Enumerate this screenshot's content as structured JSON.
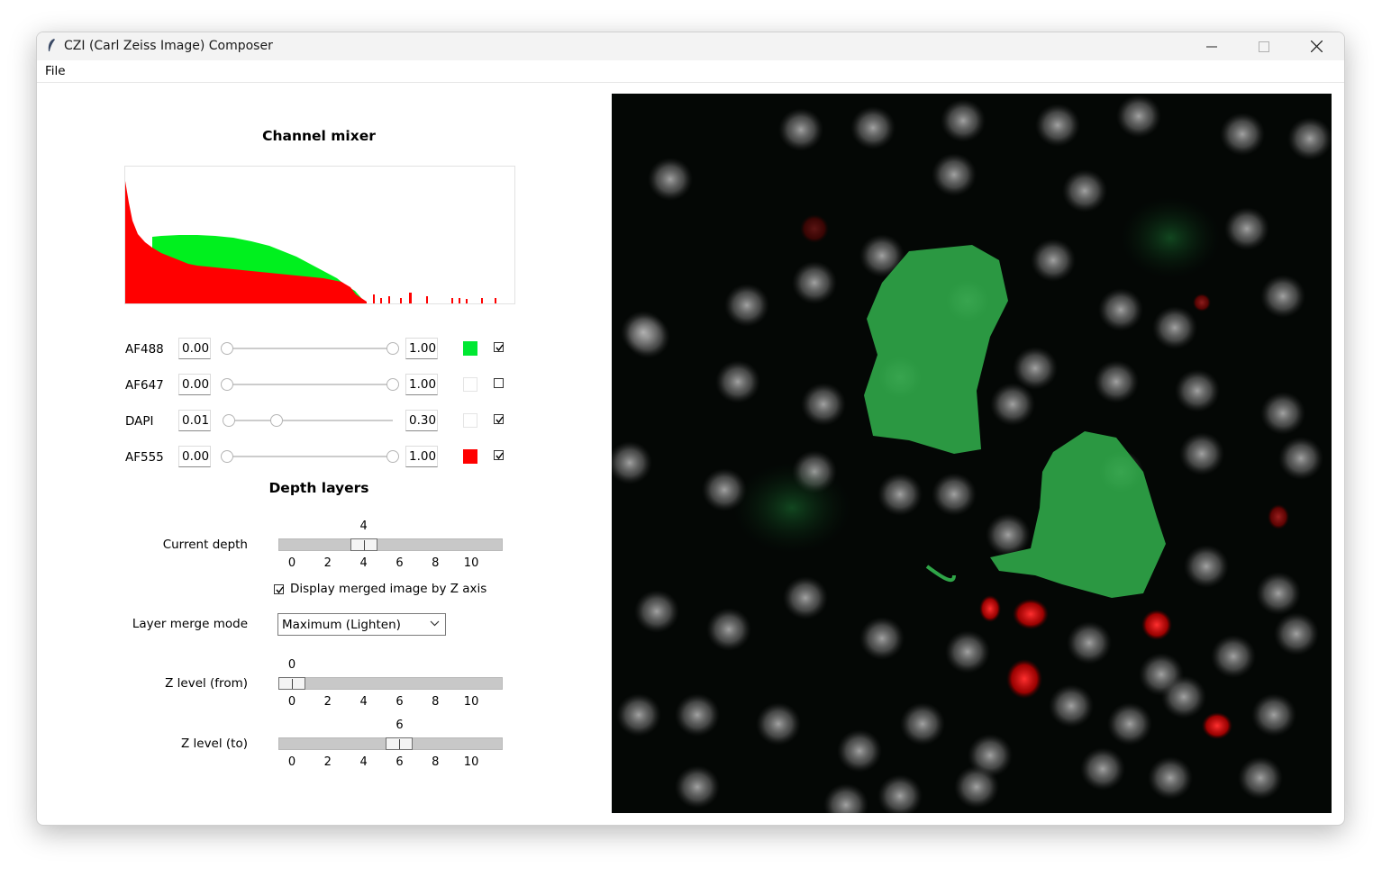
{
  "window": {
    "title": "CZI (Carl Zeiss Image) Composer",
    "controls": [
      "minimize-icon",
      "maximize-icon",
      "close-icon"
    ]
  },
  "menu": {
    "file": "File"
  },
  "channel_mixer": {
    "heading": "Channel mixer",
    "channels": [
      {
        "name": "AF488",
        "min": "0.00",
        "max": "1.00",
        "min_frac": 0.0,
        "max_frac": 1.0,
        "color": "#00e832",
        "visible": true
      },
      {
        "name": "AF647",
        "min": "0.00",
        "max": "1.00",
        "min_frac": 0.0,
        "max_frac": 1.0,
        "color": "#ffffff",
        "visible": false
      },
      {
        "name": "DAPI",
        "min": "0.01",
        "max": "0.30",
        "min_frac": 0.01,
        "max_frac": 0.3,
        "color": "#ffffff",
        "visible": true
      },
      {
        "name": "AF555",
        "min": "0.00",
        "max": "1.00",
        "min_frac": 0.0,
        "max_frac": 1.0,
        "color": "#ff0000",
        "visible": true
      }
    ]
  },
  "depth_layers": {
    "heading": "Depth layers",
    "current_depth": {
      "label": "Current depth",
      "value": "4"
    },
    "merged_option": {
      "label": "Display merged image by Z axis",
      "checked": true
    },
    "merge_mode": {
      "label": "Layer merge mode",
      "selected": "Maximum (Lighten)"
    },
    "z_from": {
      "label": "Z level (from)",
      "value": "0"
    },
    "z_to": {
      "label": "Z level (to)",
      "value": "6"
    },
    "scale_min": 0,
    "scale_max": 11,
    "ticks": [
      "0",
      "2",
      "4",
      "6",
      "8",
      "10"
    ]
  }
}
